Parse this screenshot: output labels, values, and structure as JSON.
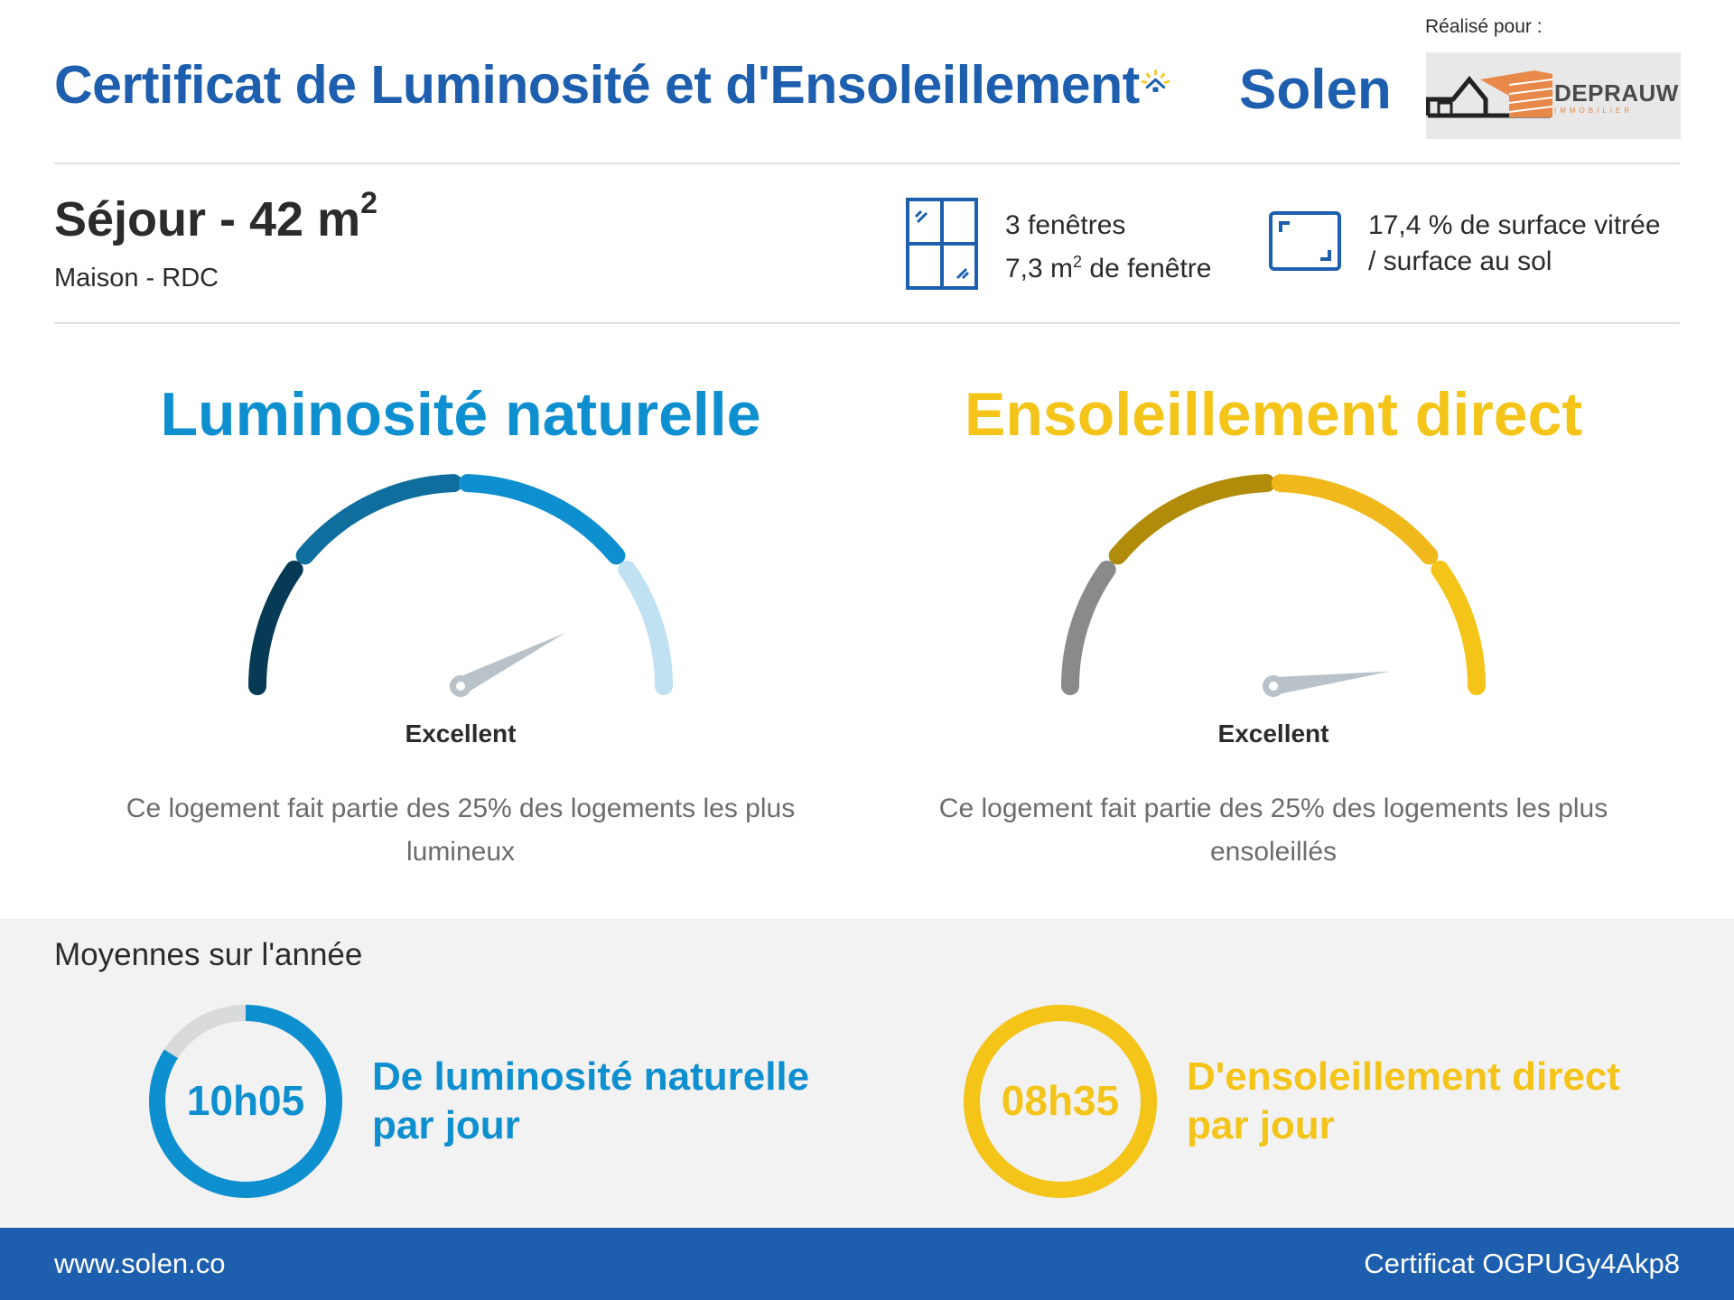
{
  "header": {
    "title": "Certificat de Luminosité et d'Ensoleillement",
    "brand": "Solen",
    "made_for_label": "Réalisé pour :",
    "client_name": "DEPRAUW",
    "client_sub": "IMMOBILIER"
  },
  "room": {
    "title": "Séjour - 42 m",
    "title_sup": "2",
    "subtitle": "Maison - RDC"
  },
  "stats": {
    "windows_count": "3 fenêtres",
    "window_area_prefix": "7,3 m",
    "window_area_sup": "2",
    "window_area_suffix": " de fenêtre",
    "glazing_line1": "17,4 % de surface vitrée",
    "glazing_line2": "/ surface au sol"
  },
  "luminosity": {
    "title": "Luminosité naturelle",
    "rating": "Excellent",
    "description": "Ce logement fait partie des 25% des logements les plus lumineux",
    "color": "#0e8fcf",
    "level": 0.85
  },
  "sunshine": {
    "title": "Ensoleillement direct",
    "rating": "Excellent",
    "description": "Ce logement fait partie des 25% des logements les plus ensoleillés",
    "color": "#f4c419",
    "level": 0.96
  },
  "averages": {
    "title": "Moyennes sur l'année",
    "luminosity_value": "10h05",
    "luminosity_label_line1": "De luminosité naturelle",
    "luminosity_label_line2": "par jour",
    "luminosity_fraction": 0.84,
    "sunshine_value": "08h35",
    "sunshine_label_line1": "D'ensoleillement direct",
    "sunshine_label_line2": "par jour",
    "sunshine_fraction": 1.0
  },
  "footer": {
    "website": "www.solen.co",
    "certificate": "Certificat OGPUGy4Akp8"
  },
  "colors": {
    "brand_blue": "#1d5fae",
    "lum_dark": "#063a55",
    "lum_mid": "#0f6e9e",
    "lum_main": "#0e8fcf",
    "lum_light": "#bfe1f2",
    "sun_grey": "#8a8a8a",
    "sun_olive": "#b08c0a",
    "sun_mid": "#f0b81a",
    "sun_main": "#f4c419",
    "needle": "#b9c2c8"
  }
}
